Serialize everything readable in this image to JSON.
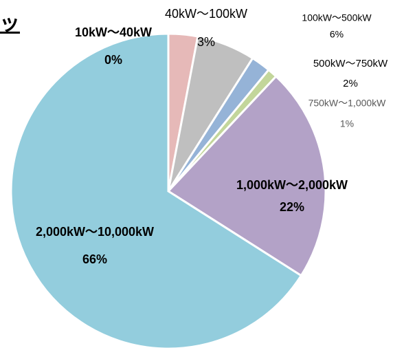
{
  "chart_data": {
    "type": "pie",
    "title": "ッ",
    "categories": [
      "10kW～40kW",
      "40kW～100kW",
      "100kW～500kW",
      "500kW～750kW",
      "750kW～1,000kW",
      "1,000kW～2,000kW",
      "2,000kW～10,000kW"
    ],
    "values": [
      0,
      3,
      6,
      2,
      1,
      22,
      66
    ],
    "value_labels": [
      "0%",
      "3%",
      "6%",
      "2%",
      "1%",
      "22%",
      "66%"
    ],
    "colors": [
      "#f2dcdb",
      "#e6b9b8",
      "#bfbfbf",
      "#95b3d7",
      "#c3d69b",
      "#b3a2c7",
      "#93cddd"
    ]
  }
}
